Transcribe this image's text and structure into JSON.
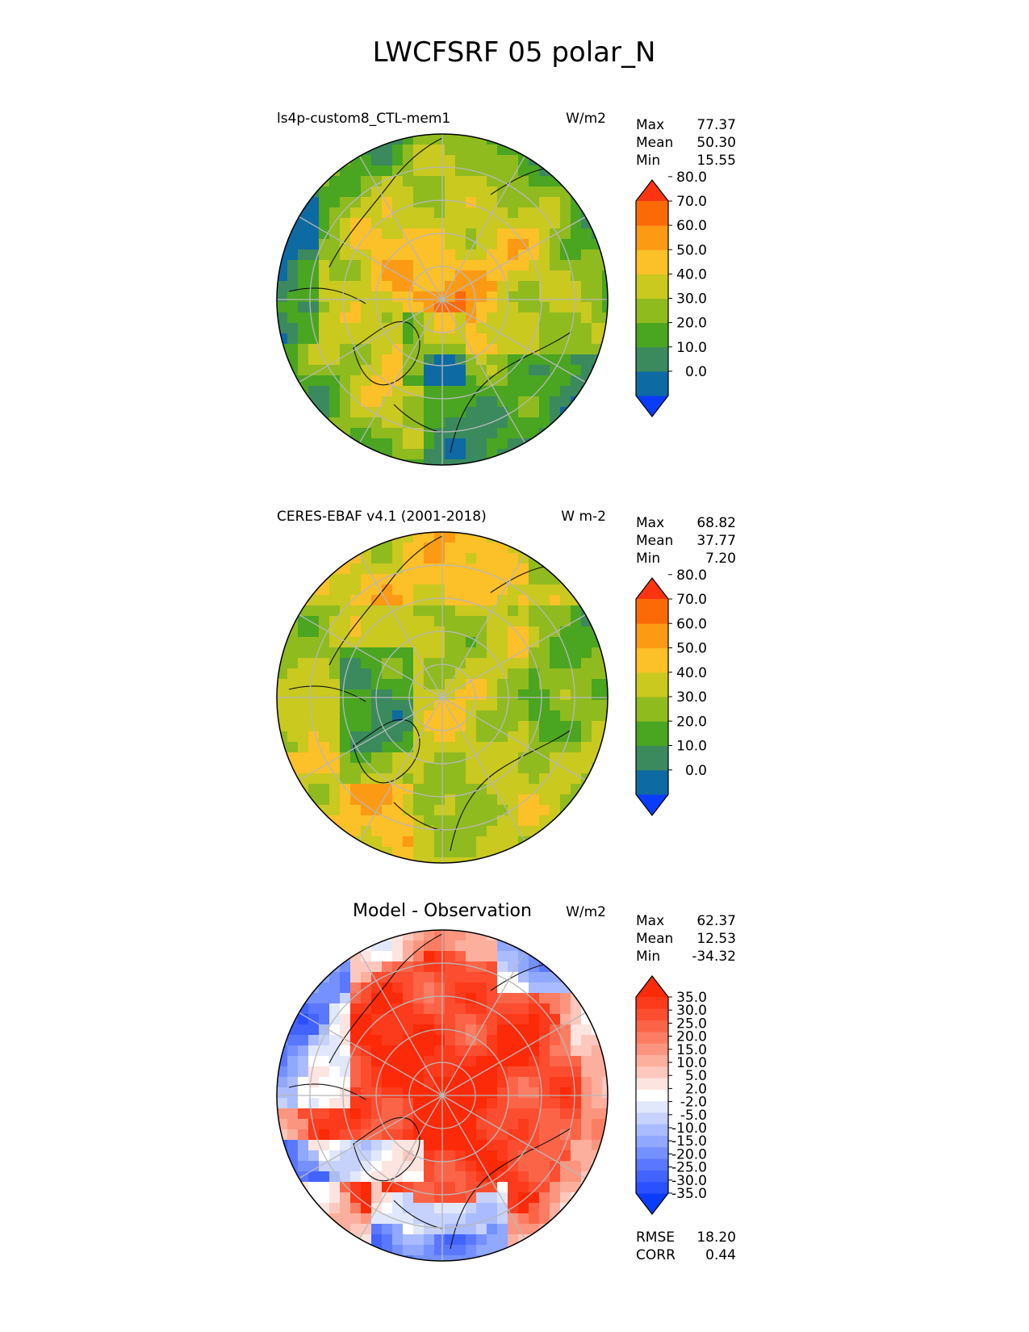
{
  "title": "LWCFSRF 05 polar_N",
  "panels": [
    {
      "id": "test",
      "left_label": "ls4p-custom8_CTL-mem1",
      "center_label": "",
      "units": "W/m2",
      "stats": [
        {
          "label": "Max",
          "value": "77.37"
        },
        {
          "label": "Mean",
          "value": "50.30"
        },
        {
          "label": "Min",
          "value": "15.55"
        }
      ],
      "colorbar": {
        "colors": [
          "#0a3cff",
          "#0d6aa3",
          "#3a8a5e",
          "#4aa521",
          "#8fbb1f",
          "#c9c920",
          "#fcc028",
          "#fc9a14",
          "#fc6a08",
          "#fc3510"
        ],
        "ticks": [
          "0.0",
          "10.0",
          "20.0",
          "30.0",
          "40.0",
          "50.0",
          "60.0",
          "70.0",
          "80.0"
        ]
      },
      "field_style": "model"
    },
    {
      "id": "reference",
      "left_label": "CERES-EBAF v4.1 (2001-2018)",
      "center_label": "",
      "units": "W m-2",
      "stats": [
        {
          "label": "Max",
          "value": "68.82"
        },
        {
          "label": "Mean",
          "value": "37.77"
        },
        {
          "label": "Min",
          "value": "7.20"
        }
      ],
      "colorbar": {
        "colors": [
          "#0a3cff",
          "#0d6aa3",
          "#3a8a5e",
          "#4aa521",
          "#8fbb1f",
          "#c9c920",
          "#fcc028",
          "#fc9a14",
          "#fc6a08",
          "#fc3510"
        ],
        "ticks": [
          "0.0",
          "10.0",
          "20.0",
          "30.0",
          "40.0",
          "50.0",
          "60.0",
          "70.0",
          "80.0"
        ]
      },
      "field_style": "obs"
    },
    {
      "id": "diff",
      "left_label": "",
      "center_label": "Model - Observation",
      "units": "W/m2",
      "stats": [
        {
          "label": "Max",
          "value": "62.37"
        },
        {
          "label": "Mean",
          "value": "12.53"
        },
        {
          "label": "Min",
          "value": "-34.32"
        }
      ],
      "colorbar": {
        "colors": [
          "#0a3cff",
          "#2a50ff",
          "#4263ff",
          "#5a78ff",
          "#7590ff",
          "#90a8ff",
          "#aabcff",
          "#c6d2fb",
          "#e2e8fb",
          "#ffffff",
          "#fce4e0",
          "#fcc8bd",
          "#fcaf9d",
          "#fc957f",
          "#fc7d63",
          "#fc6448",
          "#fc4d30",
          "#fc3a1c",
          "#fc2a08"
        ],
        "ticks": [
          "-35.0",
          "-30.0",
          "-25.0",
          "-20.0",
          "-15.0",
          "-10.0",
          "-5.0",
          "-2.0",
          "2.0",
          "5.0",
          "10.0",
          "15.0",
          "20.0",
          "25.0",
          "30.0",
          "35.0"
        ]
      },
      "field_style": "diff"
    }
  ],
  "metrics": [
    {
      "label": "RMSE",
      "value": "18.20"
    },
    {
      "label": "CORR",
      "value": "0.44"
    }
  ]
}
